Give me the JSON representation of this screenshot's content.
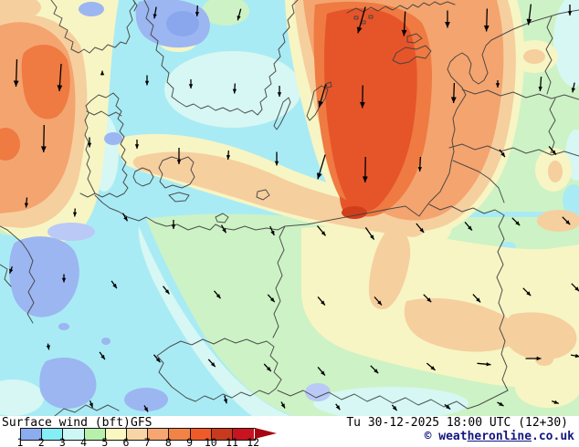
{
  "legend": {
    "title": "Surface wind (bft)",
    "model": "GFS",
    "timestamp": "Tu 30-12-2025 18:00 UTC (12+30)",
    "copyright": {
      "prefix": "© weat",
      "underlined": "heronline",
      "suffix": ".co.uk"
    },
    "scale": {
      "unit": "bft",
      "labels": [
        "1",
        "2",
        "3",
        "4",
        "5",
        "6",
        "7",
        "8",
        "9",
        "10",
        "11",
        "12"
      ],
      "segment_colors": [
        "#8cacf0",
        "#86ecf5",
        "#cdf7f5",
        "#b7f0ab",
        "#f8f8c0",
        "#f8d5a6",
        "#f6a671",
        "#f18347",
        "#ef5b28",
        "#c83a1d",
        "#c81420"
      ],
      "overflow_color": "#a50612"
    }
  },
  "map": {
    "border_color": "#3f3f3f",
    "arrow_color": "#000000",
    "region_colors": {
      "bft_1_2": "#9cb6f1",
      "bft_1_2_light": "#bac9f5",
      "bft_1_2_deep": "#8aa7ee",
      "bft_2_3": "#a9ebf4",
      "bft_3_4": "#d6f7f3",
      "bft_4_5": "#cdf2c5",
      "bft_5_6": "#f7f5c3",
      "bft_6_7": "#f6cf9f",
      "bft_7_8": "#f4a46f",
      "bft_8_9": "#ef7a42",
      "bft_9_10": "#e6552a",
      "bft_10_11": "#cf3f1c"
    },
    "arrows": [
      [
        170,
        14,
        190,
        13
      ],
      [
        216,
        12,
        183,
        12
      ],
      [
        262,
        16,
        195,
        13
      ],
      [
        396,
        22,
        196,
        30
      ],
      [
        443,
        26,
        183,
        27
      ],
      [
        490,
        21,
        180,
        19
      ],
      [
        533,
        22,
        182,
        25
      ],
      [
        580,
        16,
        187,
        23
      ],
      [
        624,
        11,
        180,
        12
      ],
      [
        18,
        80,
        182,
        30
      ],
      [
        66,
        85,
        184,
        30
      ],
      [
        112,
        80,
        0,
        5
      ],
      [
        161,
        88,
        180,
        11
      ],
      [
        209,
        92,
        180,
        10
      ],
      [
        257,
        97,
        183,
        11
      ],
      [
        306,
        100,
        180,
        12
      ],
      [
        353,
        105,
        196,
        26
      ],
      [
        397,
        106,
        181,
        25
      ],
      [
        497,
        102,
        182,
        22
      ],
      [
        545,
        92,
        180,
        8
      ],
      [
        592,
        92,
        184,
        16
      ],
      [
        628,
        96,
        192,
        11
      ],
      [
        48,
        152,
        181,
        30
      ],
      [
        98,
        156,
        180,
        11
      ],
      [
        150,
        158,
        180,
        10
      ],
      [
        196,
        171,
        180,
        18
      ],
      [
        250,
        170,
        183,
        10
      ],
      [
        303,
        174,
        180,
        15
      ],
      [
        352,
        183,
        197,
        28
      ],
      [
        400,
        186,
        181,
        28
      ],
      [
        460,
        180,
        183,
        16
      ],
      [
        550,
        168,
        145,
        10
      ],
      [
        605,
        165,
        140,
        12
      ],
      [
        29,
        222,
        185,
        11
      ],
      [
        82,
        233,
        183,
        9
      ],
      [
        137,
        238,
        150,
        10
      ],
      [
        190,
        246,
        180,
        10
      ],
      [
        245,
        251,
        150,
        10
      ],
      [
        298,
        253,
        155,
        11
      ],
      [
        352,
        253,
        140,
        14
      ],
      [
        405,
        256,
        145,
        16
      ],
      [
        460,
        250,
        140,
        13
      ],
      [
        513,
        248,
        140,
        12
      ],
      [
        565,
        243,
        135,
        12
      ],
      [
        620,
        242,
        135,
        12
      ],
      [
        12,
        296,
        200,
        8
      ],
      [
        70,
        305,
        180,
        9
      ],
      [
        125,
        312,
        145,
        10
      ],
      [
        182,
        318,
        142,
        11
      ],
      [
        238,
        323,
        140,
        11
      ],
      [
        297,
        327,
        138,
        11
      ],
      [
        352,
        330,
        140,
        12
      ],
      [
        414,
        330,
        138,
        12
      ],
      [
        468,
        327,
        135,
        12
      ],
      [
        522,
        327,
        137,
        12
      ],
      [
        577,
        320,
        135,
        12
      ],
      [
        630,
        315,
        135,
        12
      ],
      [
        53,
        380,
        170,
        7
      ],
      [
        112,
        390,
        145,
        10
      ],
      [
        172,
        393,
        140,
        11
      ],
      [
        232,
        398,
        138,
        11
      ],
      [
        293,
        403,
        137,
        11
      ],
      [
        352,
        407,
        140,
        12
      ],
      [
        410,
        405,
        135,
        12
      ],
      [
        472,
        402,
        130,
        12
      ],
      [
        530,
        399,
        95,
        15
      ],
      [
        584,
        393,
        90,
        17
      ],
      [
        630,
        390,
        100,
        10
      ],
      [
        100,
        443,
        160,
        8
      ],
      [
        160,
        448,
        150,
        8
      ],
      [
        247,
        438,
        165,
        9
      ],
      [
        310,
        444,
        150,
        8
      ],
      [
        370,
        446,
        145,
        8
      ],
      [
        432,
        447,
        140,
        8
      ],
      [
        490,
        446,
        130,
        8
      ],
      [
        548,
        443,
        120,
        8
      ],
      [
        608,
        441,
        110,
        8
      ]
    ]
  }
}
